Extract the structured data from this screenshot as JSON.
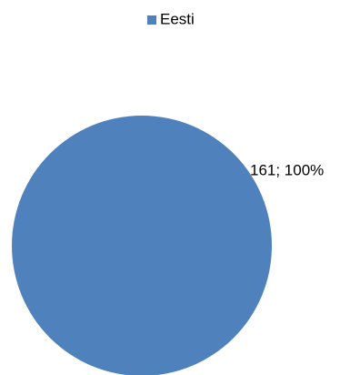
{
  "chart_data": {
    "type": "pie",
    "categories": [
      "Eesti"
    ],
    "values": [
      161
    ],
    "value_labels": [
      "161; 100%"
    ],
    "colors": [
      "#4f81bd"
    ],
    "legend": "top"
  }
}
